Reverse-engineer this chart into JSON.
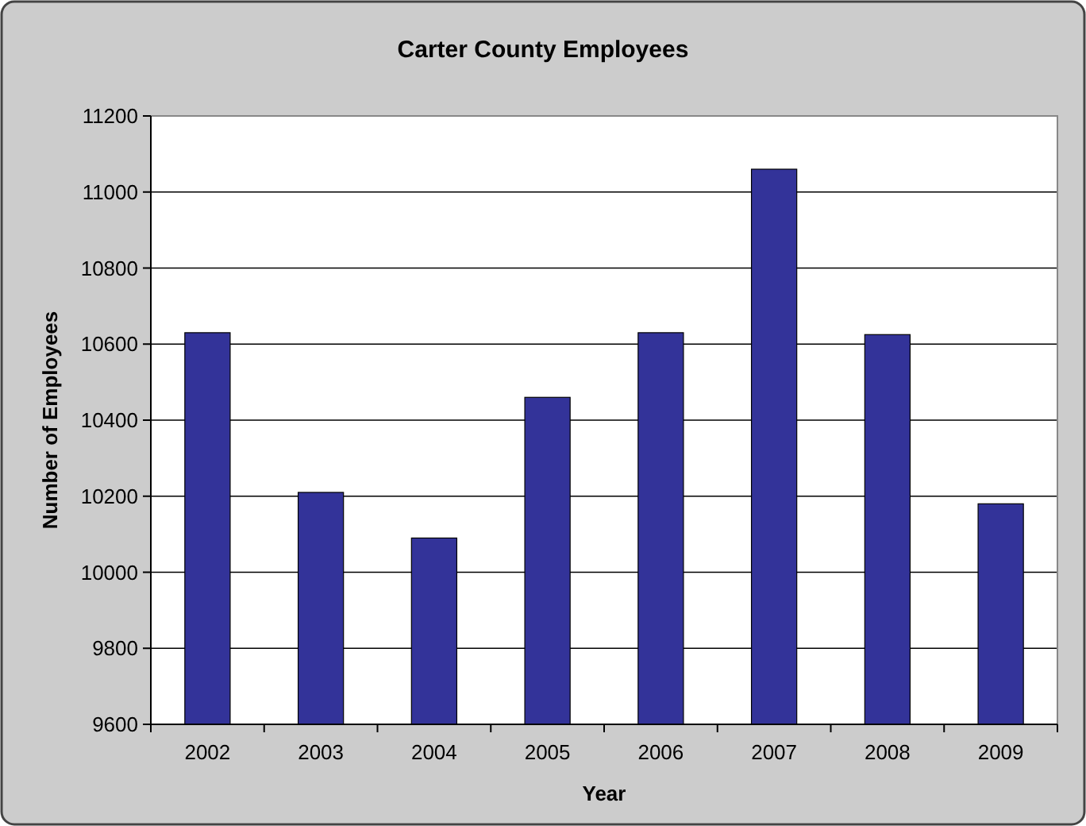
{
  "chart_data": {
    "type": "bar",
    "title": "Carter County Employees",
    "xlabel": "Year",
    "ylabel": "Number of Employees",
    "categories": [
      "2002",
      "2003",
      "2004",
      "2005",
      "2006",
      "2007",
      "2008",
      "2009"
    ],
    "values": [
      10630,
      10210,
      10090,
      10460,
      10630,
      11060,
      10625,
      10180
    ],
    "color": "#333399",
    "ylim": [
      9600,
      11200
    ],
    "yticks": [
      9600,
      9800,
      10000,
      10200,
      10400,
      10600,
      10800,
      11000,
      11200
    ],
    "grid": "y"
  }
}
